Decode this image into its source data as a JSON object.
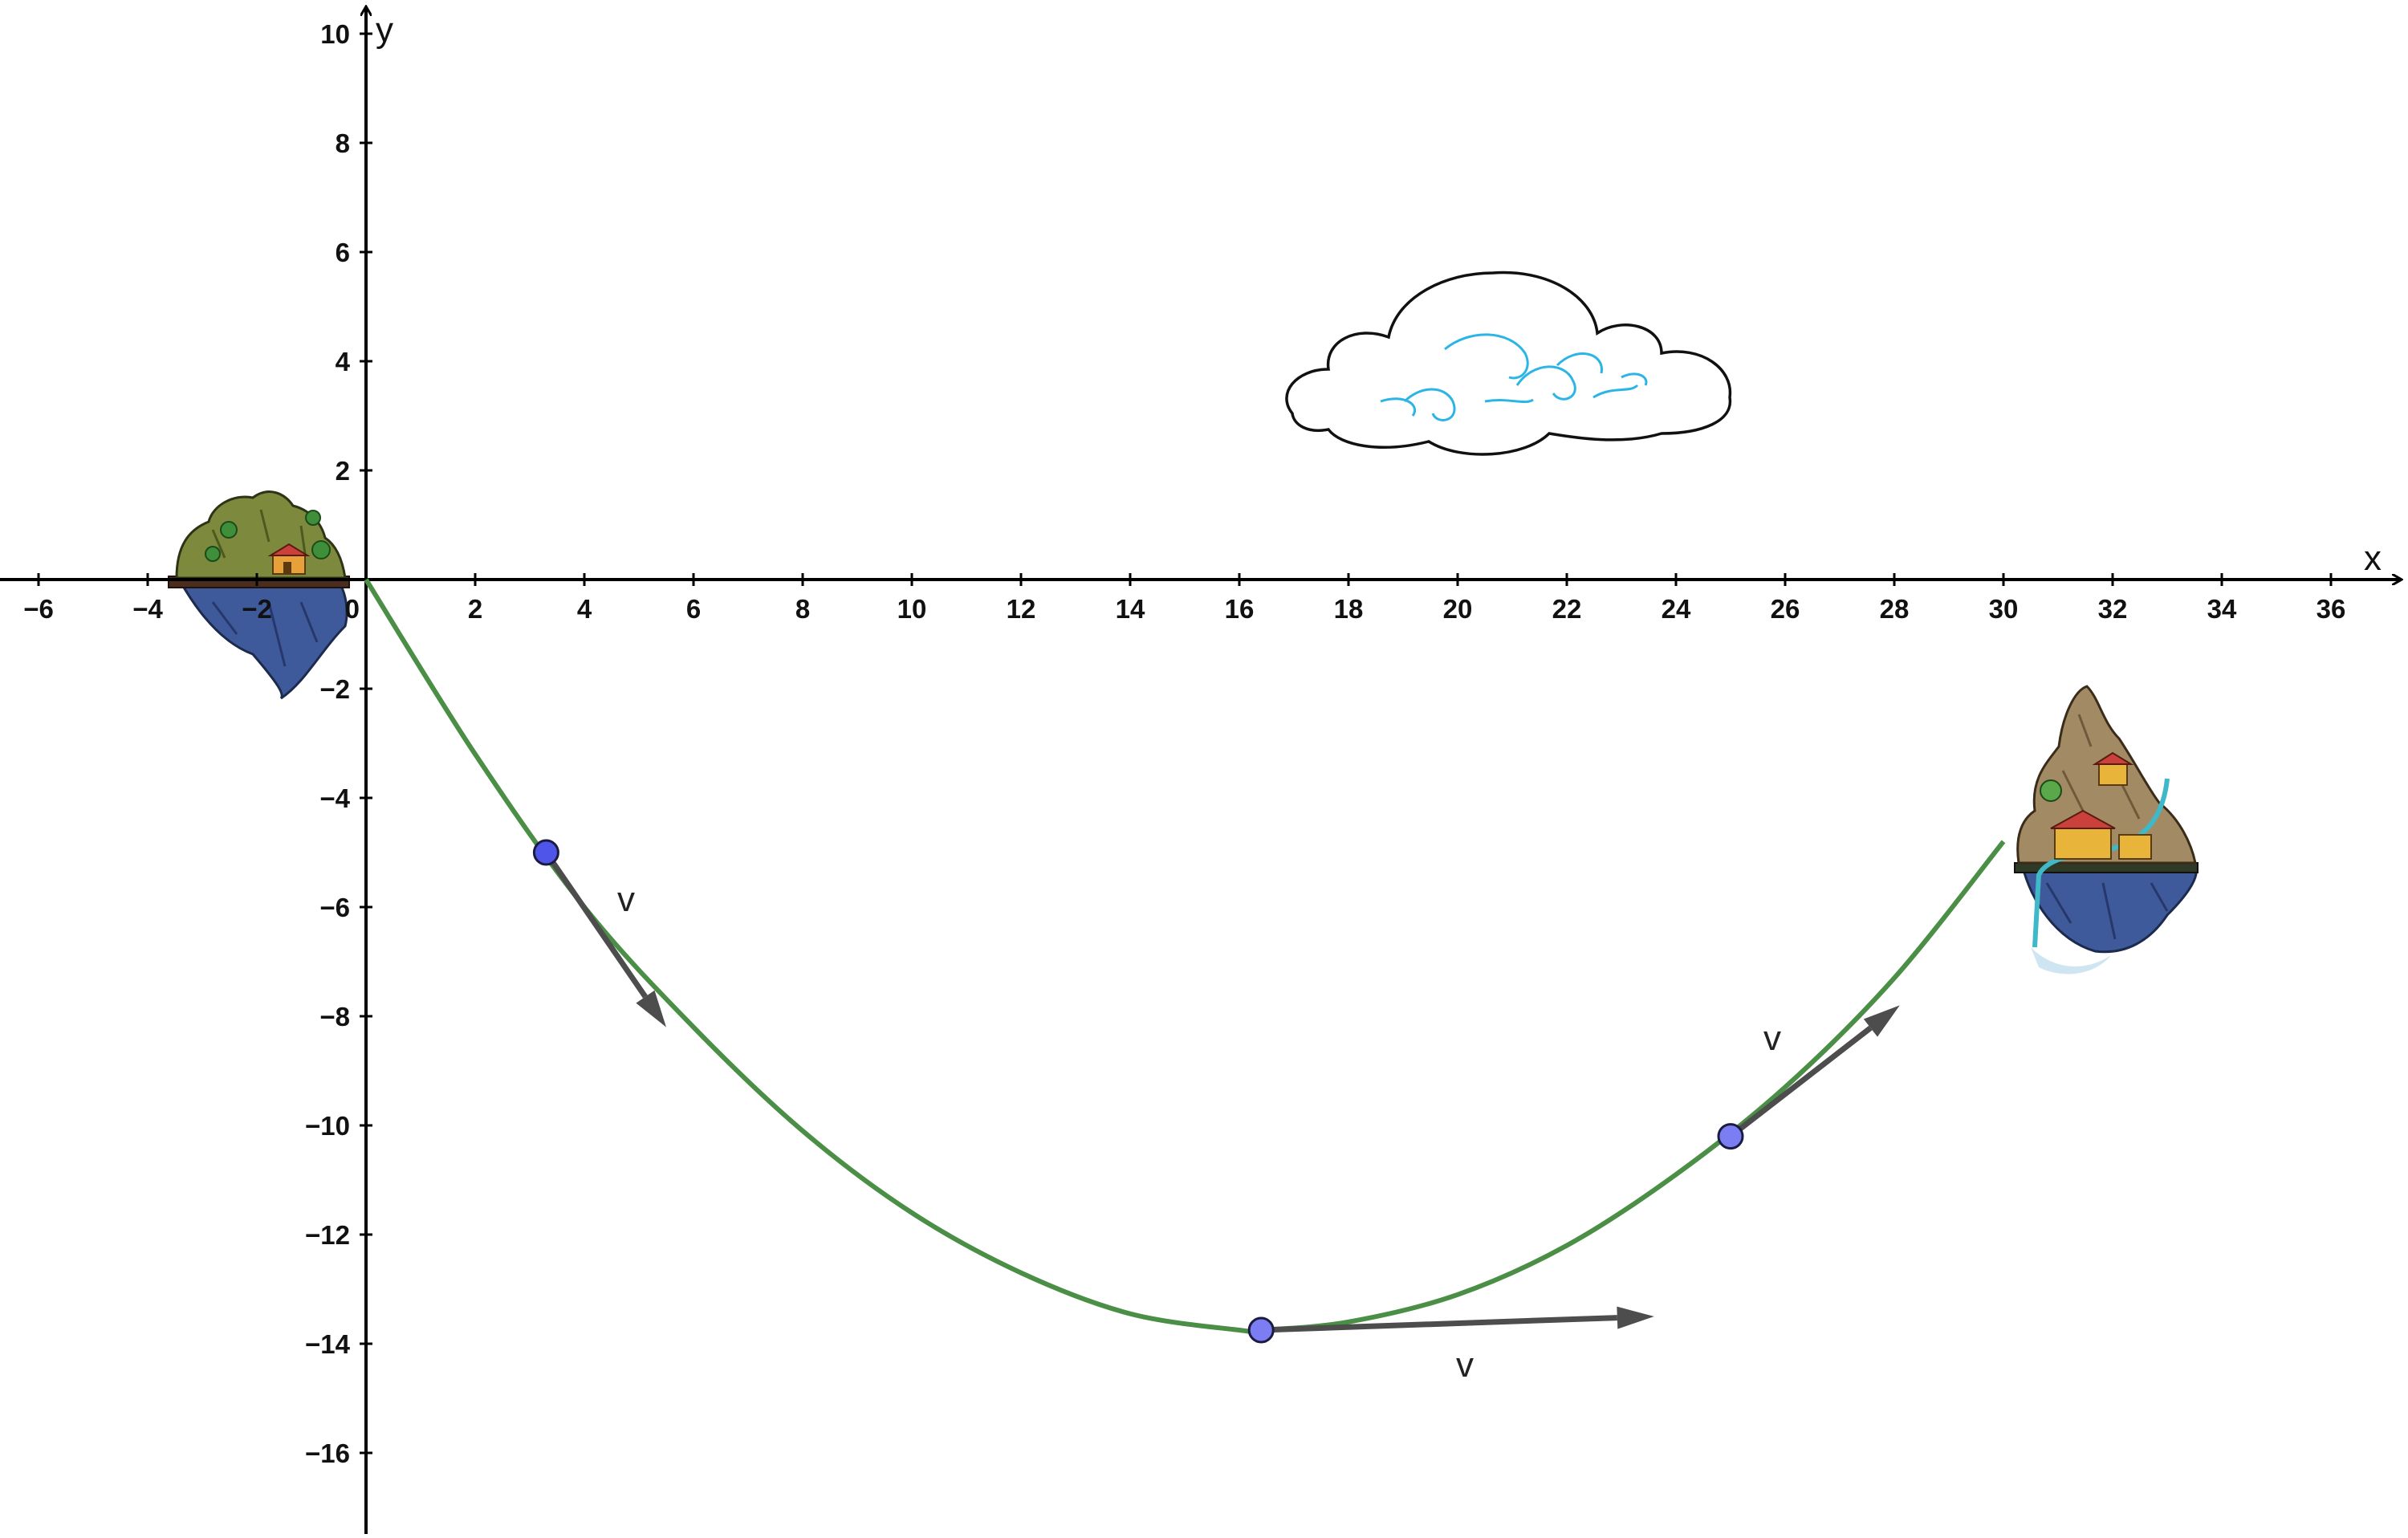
{
  "axes": {
    "x_label": "x",
    "y_label": "y",
    "xlim": [
      -6.6,
      37.6
    ],
    "ylim": [
      -17.3,
      10.5
    ],
    "x_ticks": [
      "−6",
      "−4",
      "−2",
      "2",
      "4",
      "6",
      "8",
      "10",
      "12",
      "14",
      "16",
      "18",
      "20",
      "22",
      "24",
      "26",
      "28",
      "30",
      "32",
      "34",
      "36"
    ],
    "x_tick_values": [
      -6,
      -4,
      -2,
      2,
      4,
      6,
      8,
      10,
      12,
      14,
      16,
      18,
      20,
      22,
      24,
      26,
      28,
      30,
      32,
      34,
      36
    ],
    "y_ticks": [
      "10",
      "8",
      "6",
      "4",
      "2",
      "−2",
      "−4",
      "−6",
      "−8",
      "−10",
      "−12",
      "−14",
      "−16"
    ],
    "y_tick_values": [
      10,
      8,
      6,
      4,
      2,
      -2,
      -4,
      -6,
      -8,
      -10,
      -12,
      -14,
      -16
    ],
    "origin_label": "0"
  },
  "chart_data": {
    "type": "line",
    "title": "",
    "curve": {
      "color": "#4a8f45",
      "x": [
        0,
        2,
        4,
        6,
        8,
        10,
        12,
        14,
        16,
        16.4,
        18,
        20,
        22,
        24,
        26,
        28,
        30
      ],
      "y": [
        0,
        -3.2,
        -6.0,
        -8.2,
        -10.1,
        -11.6,
        -12.7,
        -13.45,
        -13.75,
        -13.75,
        -13.6,
        -13.1,
        -12.2,
        -10.9,
        -9.3,
        -7.3,
        -4.8
      ]
    },
    "points": [
      {
        "x": 3.3,
        "y": -5.0,
        "vector_end": [
          5.5,
          -8.2
        ],
        "vector_label": "v"
      },
      {
        "x": 16.4,
        "y": -13.75,
        "vector_end": [
          23.6,
          -13.5
        ],
        "vector_label": "v"
      },
      {
        "x": 25.0,
        "y": -10.2,
        "vector_end": [
          28.1,
          -7.8
        ],
        "vector_label": "v"
      }
    ],
    "point_color": "#7a7ef2",
    "vector_color": "#4d4d4d"
  },
  "decorations": {
    "left_island_icon": "floating-island-icon",
    "right_island_icon": "floating-island-icon",
    "cloud_icon": "cloud-icon"
  }
}
